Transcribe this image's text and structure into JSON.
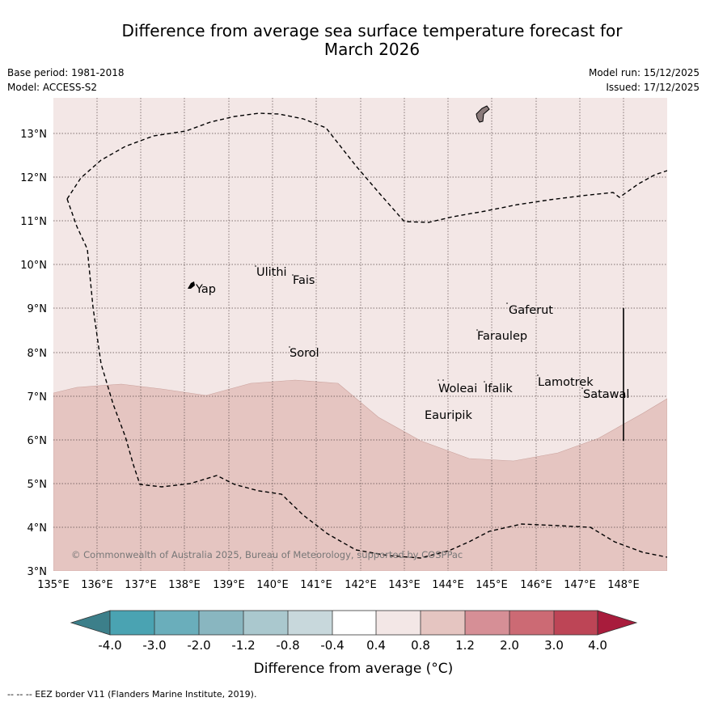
{
  "title": {
    "line1": "Difference from average sea surface temperature forecast for",
    "line2": "March 2026"
  },
  "meta": {
    "base_period": "Base period: 1981-2018",
    "model": "Model: ACCESS-S2",
    "model_run": "Model run: 15/12/2025",
    "issued": "Issued: 17/12/2025"
  },
  "map": {
    "lat_labels": [
      "3°N",
      "4°N",
      "5°N",
      "6°N",
      "7°N",
      "8°N",
      "9°N",
      "10°N",
      "11°N",
      "12°N",
      "13°N"
    ],
    "lon_labels": [
      "135°E",
      "136°E",
      "137°E",
      "138°E",
      "139°E",
      "140°E",
      "141°E",
      "142°E",
      "143°E",
      "144°E",
      "145°E",
      "146°E",
      "147°E",
      "148°E"
    ],
    "places": [
      "Yap",
      "Ulithi",
      "Fais",
      "Sorol",
      "Gaferut",
      "Faraulep",
      "Woleai",
      "Ifalik",
      "Eauripik",
      "Lamotrek",
      "Satawal"
    ],
    "copyright": "© Commonwealth of Australia 2025, Bureau of Meteorology, supported by COSPPac",
    "colors": {
      "anomaly_0_4_0_8": "#f3e7e6",
      "anomaly_0_8_1_2": "#e5c5c1",
      "grid": "#5a4a4a",
      "eez": "#000000",
      "land": "#8a7a7a"
    }
  },
  "colorbar": {
    "title": "Difference from average (°C)",
    "ticks": [
      "-4.0",
      "-3.0",
      "-2.0",
      "-1.2",
      "-0.8",
      "-0.4",
      "0.4",
      "0.8",
      "1.2",
      "2.0",
      "3.0",
      "4.0"
    ],
    "colors": [
      "#3c7f8a",
      "#4aa3b2",
      "#6aaebb",
      "#89b6c0",
      "#aac8ce",
      "#c8d8dc",
      "#ffffff",
      "#f3e7e6",
      "#e5c5c1",
      "#d68f96",
      "#cc6a74",
      "#bd4556",
      "#a81c3c"
    ]
  },
  "footnote": "-- -- -- EEZ border V11 (Flanders Marine Institute, 2019)."
}
